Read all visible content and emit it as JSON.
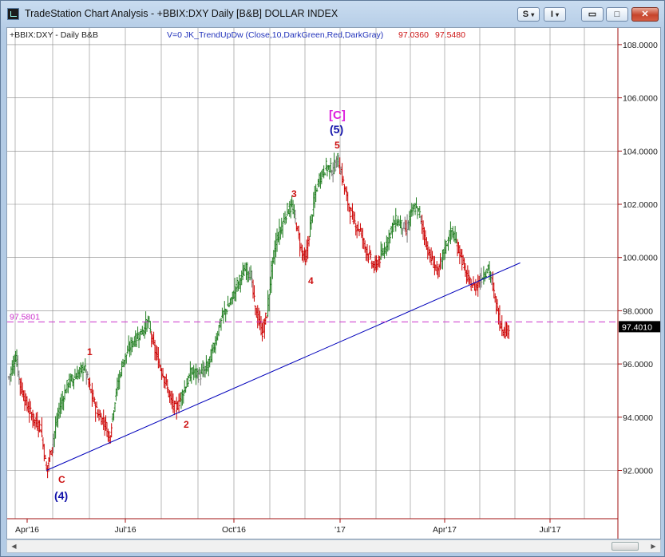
{
  "window": {
    "title": "TradeStation Chart Analysis - +BBIX:DXY Daily [B&B] DOLLAR INDEX",
    "buttons": {
      "s": "S",
      "i": "I",
      "s_caret": "▾",
      "i_caret": "▾",
      "minimize": "▭",
      "maximize": "□",
      "close": "✕"
    }
  },
  "header": {
    "symbol": "+BBIX:DXY - Daily  B&B",
    "indicator": "V=0  JK_TrendUpDw  (Close,10,DarkGreen,Red,DarkGray)",
    "value1": "97.0360",
    "value2": "97.5480"
  },
  "price_axis": {
    "ticks": [
      "108.0000",
      "106.0000",
      "104.0000",
      "102.0000",
      "100.0000",
      "98.0000",
      "96.0000",
      "94.0000",
      "92.0000"
    ],
    "current_price": "97.4010",
    "reference_line_label": "97.5801",
    "range": [
      90.0,
      108.8
    ]
  },
  "time_axis": {
    "ticks": [
      "Apr'16",
      "Jul'16",
      "Oct'16",
      "'17",
      "Apr'17",
      "Jul'17"
    ]
  },
  "wave_labels": {
    "c_lower": "C",
    "four_paren": "(4)",
    "one": "1",
    "two": "2",
    "three": "3",
    "four": "4",
    "five": "5",
    "five_paren": "(5)",
    "c_bracket": "[C]"
  },
  "colors": {
    "up": "#1f7d1f",
    "down": "#cc0000",
    "neutral": "#7a7a7a",
    "trendline": "#0000bb",
    "reference": "#cc33cc",
    "grid": "#888888",
    "axis": "#a01010",
    "wave_blue": "#1111aa",
    "wave_magenta": "#dd22dd"
  },
  "chart_data": {
    "type": "ohlc",
    "symbol": "+BBIX:DXY",
    "interval": "Daily",
    "y_range": [
      90.0,
      108.8
    ],
    "close_path": [
      [
        0,
        95.5
      ],
      [
        6,
        96.3
      ],
      [
        10,
        95.2
      ],
      [
        16,
        94.4
      ],
      [
        22,
        93.9
      ],
      [
        28,
        93.6
      ],
      [
        33,
        92.0
      ],
      [
        38,
        93.0
      ],
      [
        44,
        94.3
      ],
      [
        52,
        95.3
      ],
      [
        60,
        95.6
      ],
      [
        66,
        95.9
      ],
      [
        72,
        94.9
      ],
      [
        78,
        94.1
      ],
      [
        84,
        93.8
      ],
      [
        88,
        93.2
      ],
      [
        94,
        95.0
      ],
      [
        100,
        96.1
      ],
      [
        108,
        96.8
      ],
      [
        116,
        97.2
      ],
      [
        122,
        97.6
      ],
      [
        126,
        96.8
      ],
      [
        130,
        96.2
      ],
      [
        136,
        95.5
      ],
      [
        142,
        94.6
      ],
      [
        146,
        94.3
      ],
      [
        152,
        94.9
      ],
      [
        160,
        95.7
      ],
      [
        168,
        95.6
      ],
      [
        174,
        95.9
      ],
      [
        180,
        96.7
      ],
      [
        184,
        97.4
      ],
      [
        188,
        97.9
      ],
      [
        194,
        98.3
      ],
      [
        198,
        98.8
      ],
      [
        204,
        99.3
      ],
      [
        208,
        99.6
      ],
      [
        212,
        99.3
      ],
      [
        216,
        98.0
      ],
      [
        222,
        97.2
      ],
      [
        226,
        97.9
      ],
      [
        230,
        99.5
      ],
      [
        234,
        100.6
      ],
      [
        240,
        101.3
      ],
      [
        244,
        101.8
      ],
      [
        248,
        101.9
      ],
      [
        252,
        101.2
      ],
      [
        256,
        100.3
      ],
      [
        260,
        99.9
      ],
      [
        264,
        101.2
      ],
      [
        268,
        102.3
      ],
      [
        272,
        103.0
      ],
      [
        278,
        103.4
      ],
      [
        284,
        103.3
      ],
      [
        288,
        103.7
      ],
      [
        292,
        103.0
      ],
      [
        296,
        102.2
      ],
      [
        300,
        101.6
      ],
      [
        304,
        101.2
      ],
      [
        308,
        101.0
      ],
      [
        312,
        100.4
      ],
      [
        316,
        100.0
      ],
      [
        320,
        99.6
      ],
      [
        324,
        99.9
      ],
      [
        328,
        100.2
      ],
      [
        332,
        100.7
      ],
      [
        336,
        101.2
      ],
      [
        340,
        101.4
      ],
      [
        344,
        101.2
      ],
      [
        348,
        101.0
      ],
      [
        352,
        101.6
      ],
      [
        356,
        101.9
      ],
      [
        360,
        101.6
      ],
      [
        364,
        100.8
      ],
      [
        368,
        100.1
      ],
      [
        372,
        99.8
      ],
      [
        376,
        99.4
      ],
      [
        380,
        100.1
      ],
      [
        384,
        100.6
      ],
      [
        388,
        101.0
      ],
      [
        392,
        100.5
      ],
      [
        396,
        100.1
      ],
      [
        400,
        99.4
      ],
      [
        404,
        99.0
      ],
      [
        408,
        98.9
      ],
      [
        412,
        99.1
      ],
      [
        416,
        99.4
      ],
      [
        420,
        99.6
      ],
      [
        423,
        99.1
      ],
      [
        426,
        98.4
      ],
      [
        430,
        97.6
      ],
      [
        434,
        97.2
      ],
      [
        438,
        97.4
      ]
    ],
    "trendline": {
      "start": [
        33,
        92.0
      ],
      "end": [
        448,
        99.8
      ]
    },
    "reference_level": 97.5801
  }
}
